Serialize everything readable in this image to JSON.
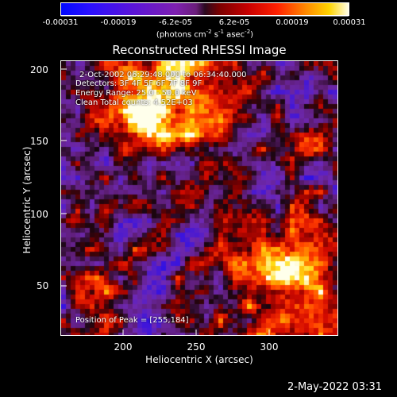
{
  "colorbar": {
    "ticks": [
      "-0.00031",
      "-0.00019",
      "-6.2e-05",
      "6.2e-05",
      "0.00019",
      "0.00031"
    ],
    "units_prefix": "(photons cm",
    "units_mid1": " s",
    "units_mid2": " asec",
    "units_suffix": ")",
    "exp_cm": "-2",
    "exp_s": "-1",
    "exp_asec": "-2"
  },
  "plot": {
    "title": "Reconstructed RHESSI Image",
    "x_axis": {
      "label": "Heliocentric X (arcsec)",
      "ticks": [
        "200",
        "250",
        "300"
      ]
    },
    "y_axis": {
      "label": "Heliocentric Y (arcsec)",
      "ticks": [
        "200",
        "150",
        "100",
        "50"
      ]
    },
    "info": {
      "time_range": "2-Oct-2002 06:29:48.000 to 06:34:40.000",
      "detectors": "Detectors: 3F 4F 5F 6F 7F 8F 9F",
      "energy": "Energy Range: 25.0 - 50.0 keV",
      "method": "Clean     Total counts: 4.52E+03",
      "peak": "Position of Peak = [255,184]"
    }
  },
  "footer": {
    "datestamp": "2-May-2022 03:31"
  },
  "colors": {
    "background": "#000000",
    "text": "#ffffff"
  }
}
